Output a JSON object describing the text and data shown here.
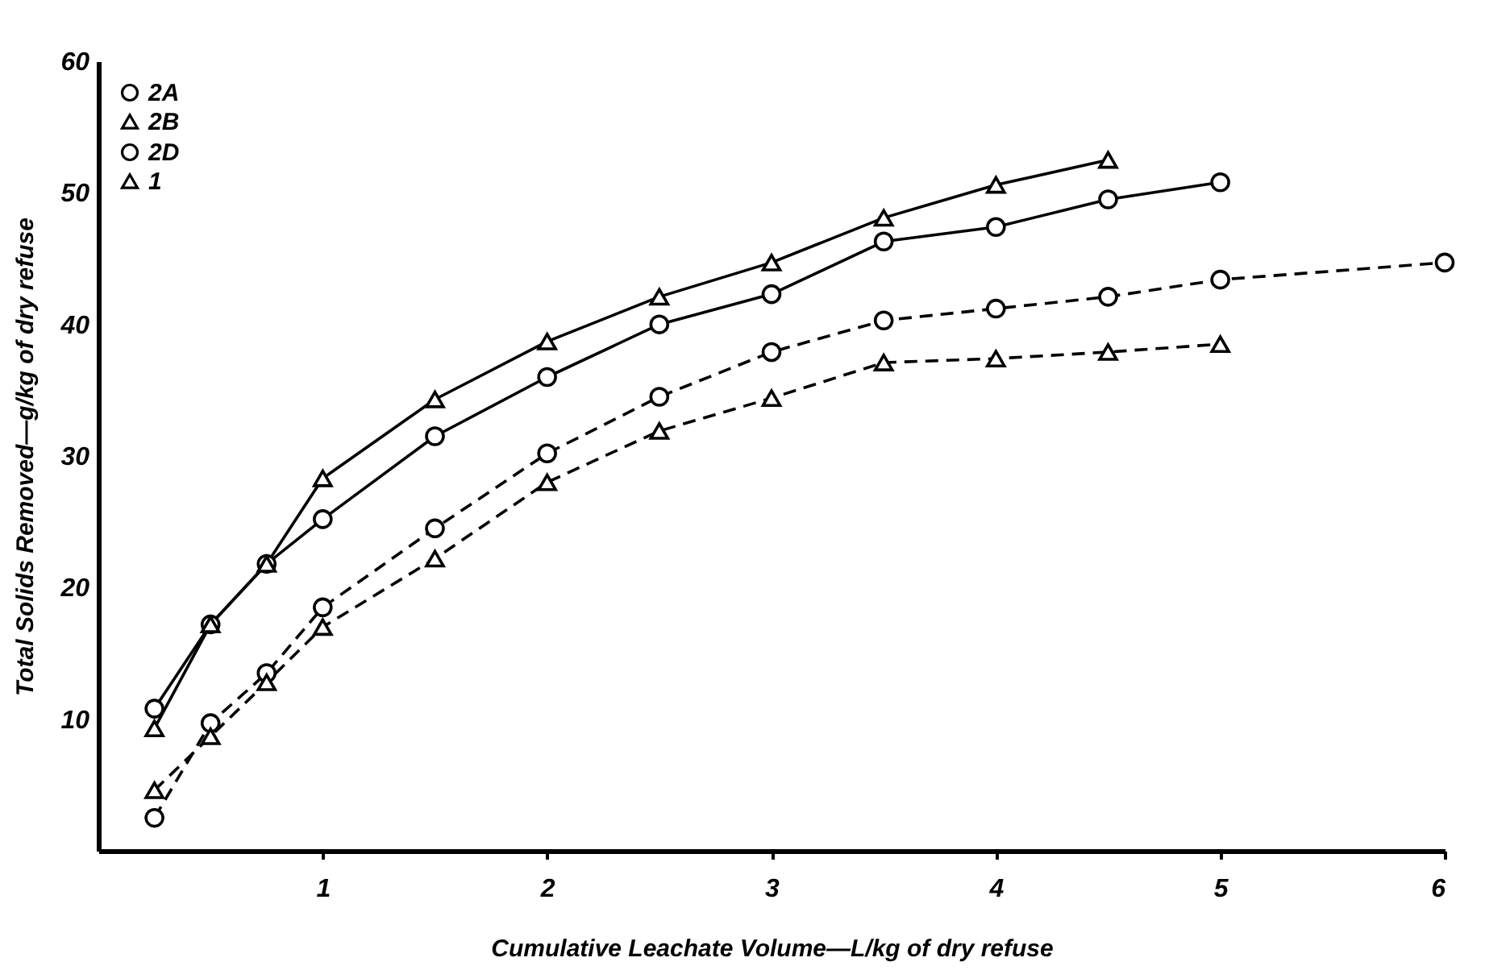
{
  "chart_data": {
    "type": "line",
    "xlabel": "Cumulative Leachate Volume—L/kg of dry refuse",
    "ylabel": "Total Solids Removed—g/kg of dry refuse",
    "xlim": [
      0,
      6
    ],
    "ylim": [
      0,
      60
    ],
    "xticks": [
      {
        "value": 1,
        "label": "1"
      },
      {
        "value": 2,
        "label": "2"
      },
      {
        "value": 3,
        "label": "3"
      },
      {
        "value": 4,
        "label": "4"
      },
      {
        "value": 5,
        "label": "5"
      },
      {
        "value": 6,
        "label": "6"
      }
    ],
    "yticks": [
      10,
      20,
      30,
      40,
      50,
      60
    ],
    "grid": false,
    "legend": "top left",
    "series": [
      {
        "name": "2A",
        "color": "#000000",
        "marker": "circle",
        "line_style": "solid",
        "x": [
          0.25,
          0.5,
          0.75,
          1,
          1.5,
          2,
          2.5,
          3,
          3.5,
          4,
          4.5,
          5
        ],
        "values": [
          10.8,
          17.2,
          21.8,
          25.2,
          31.5,
          36,
          40,
          42.3,
          46.3,
          47.4,
          49.5,
          50.8
        ]
      },
      {
        "name": "2B",
        "color": "#000000",
        "marker": "triangle",
        "line_style": "solid",
        "x": [
          0.25,
          0.5,
          0.75,
          1,
          1.5,
          2,
          2.5,
          3,
          3.5,
          4,
          4.5
        ],
        "values": [
          9.3,
          17.2,
          21.8,
          28.3,
          34.3,
          38.7,
          42.1,
          44.7,
          48.1,
          50.6,
          52.5
        ]
      },
      {
        "name": "2D",
        "color": "#000000",
        "marker": "circle",
        "line_style": "dashed",
        "x": [
          0.25,
          0.5,
          0.75,
          1,
          1.5,
          2,
          2.5,
          3,
          3.5,
          4,
          4.5,
          5,
          6
        ],
        "values": [
          2.5,
          9.7,
          13.5,
          18.5,
          24.5,
          30.2,
          34.5,
          37.9,
          40.3,
          41.2,
          42.1,
          43.4,
          44.7
        ]
      },
      {
        "name": "1",
        "color": "#000000",
        "marker": "triangle",
        "line_style": "dashed",
        "x": [
          0.25,
          0.5,
          0.75,
          1,
          1.5,
          2,
          2.5,
          3,
          3.5,
          4,
          4.5,
          5
        ],
        "values": [
          4.6,
          8.7,
          12.8,
          17,
          22.2,
          28,
          31.9,
          34.4,
          37.1,
          37.4,
          37.9,
          38.5
        ]
      }
    ]
  }
}
